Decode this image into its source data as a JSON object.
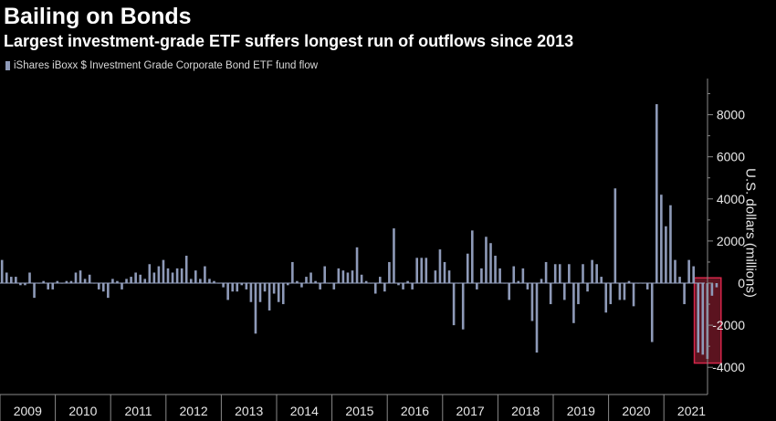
{
  "title": "Bailing on Bonds",
  "subtitle": "Largest investment-grade ETF suffers longest run of outflows since 2013",
  "legend": "iShares iBoxx $ Investment Grade Corporate Bond ETF fund flow",
  "colors": {
    "background": "#000000",
    "bar": "#8e9ab8",
    "highlight_fill": "#7a1a2a",
    "highlight_border": "#d6264a",
    "axis": "#8a8a8a"
  },
  "chart_data": {
    "type": "bar",
    "title": "Bailing on Bonds",
    "subtitle": "Largest investment-grade ETF suffers longest run of outflows since 2013",
    "ylabel": "U.S. dollars (millions)",
    "xlabel": "",
    "ylim": [
      -4500,
      9500
    ],
    "yticks": [
      -4000,
      -2000,
      0,
      2000,
      4000,
      6000,
      8000
    ],
    "grid": false,
    "legend_position": "top-left",
    "series_name": "iShares iBoxx $ Investment Grade Corporate Bond ETF fund flow",
    "x_start": "2009-01",
    "years": [
      "2009",
      "2010",
      "2011",
      "2012",
      "2013",
      "2014",
      "2015",
      "2016",
      "2017",
      "2018",
      "2019",
      "2020",
      "2021"
    ],
    "values": [
      1100,
      500,
      300,
      300,
      -100,
      -100,
      500,
      -700,
      0,
      100,
      -300,
      -300,
      100,
      0,
      100,
      100,
      500,
      600,
      200,
      400,
      0,
      -300,
      -400,
      -700,
      200,
      100,
      -300,
      200,
      300,
      500,
      400,
      200,
      900,
      500,
      800,
      1100,
      700,
      500,
      700,
      700,
      1300,
      200,
      600,
      200,
      800,
      200,
      100,
      0,
      -200,
      -800,
      -400,
      -400,
      -100,
      -300,
      -900,
      -2400,
      -900,
      -400,
      -1300,
      -500,
      -900,
      -1000,
      -100,
      1000,
      100,
      -200,
      300,
      500,
      100,
      -300,
      800,
      0,
      -300,
      700,
      600,
      500,
      600,
      1700,
      400,
      100,
      0,
      -500,
      300,
      -400,
      1000,
      2600,
      -100,
      -300,
      100,
      -300,
      1200,
      1200,
      1200,
      0,
      600,
      1600,
      1000,
      600,
      -2000,
      0,
      -2200,
      1400,
      2500,
      -300,
      700,
      2200,
      1900,
      1300,
      700,
      0,
      -800,
      800,
      100,
      700,
      -300,
      -1800,
      -3300,
      200,
      1000,
      -1000,
      900,
      900,
      -800,
      900,
      -1900,
      -1000,
      900,
      -400,
      1100,
      900,
      300,
      -1400,
      -1000,
      4500,
      -800,
      -800,
      100,
      -1100,
      0,
      0,
      -300,
      -2800,
      8500,
      4200,
      2700,
      3700,
      1100,
      300,
      -1000,
      1100,
      800,
      -3300,
      -3400,
      -3600,
      -600,
      -200
    ],
    "highlight_range": [
      151,
      155
    ],
    "highlight_label": "longest run of outflows since 2013"
  }
}
